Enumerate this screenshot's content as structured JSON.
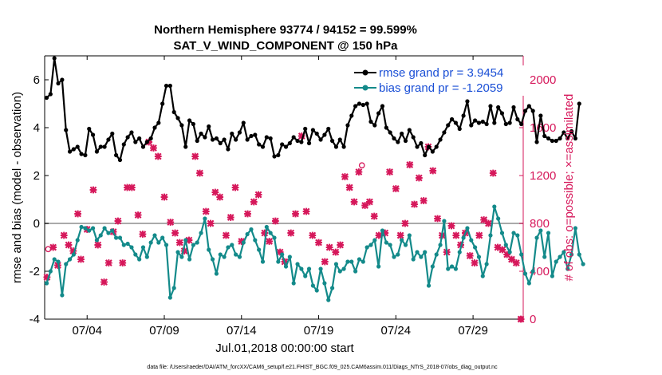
{
  "chart_data": {
    "type": "line",
    "title": "Northern Hemisphere 93774 / 94152 = 99.599%",
    "subtitle": "SAT_V_WIND_COMPONENT @ 150 hPa",
    "xlabel": "Jul.01,2018 00:00:00 start",
    "ylabel_left": "rmse and bias (model - observation)",
    "ylabel_right": "# of obs: o=possible; ×=assimilated",
    "footer": "data file: /Users/raeder/DAI/ATM_forcXX/CAM6_setup/f.e21.FHIST_BGC.f09_025.CAM6assim.011/Diags_NTrS_2018-07/obs_diag_output.nc",
    "x_range_days": [
      0.75,
      31.75
    ],
    "ylim_left": [
      -4,
      7
    ],
    "ylim_right": [
      0,
      2200
    ],
    "x_ticks": [
      {
        "day": 3.5,
        "label": "07/04"
      },
      {
        "day": 8.5,
        "label": "07/09"
      },
      {
        "day": 13.5,
        "label": "07/14"
      },
      {
        "day": 18.5,
        "label": "07/19"
      },
      {
        "day": 23.5,
        "label": "07/24"
      },
      {
        "day": 28.5,
        "label": "07/29"
      }
    ],
    "y_ticks_left": [
      -4,
      -2,
      0,
      2,
      4,
      6
    ],
    "y_ticks_right": [
      0,
      400,
      800,
      1200,
      1600,
      2000
    ],
    "zero_line": 0,
    "legend": [
      {
        "name": "rmse grand pr = 3.9454",
        "color": "#000000"
      },
      {
        "name": "bias grand pr = -1.2059",
        "color": "#138a8a"
      }
    ],
    "start_day": 0.88,
    "step_days": 0.25,
    "series": [
      {
        "name": "rmse",
        "color": "#000000",
        "axis": "left",
        "values": [
          5.25,
          5.4,
          6.9,
          5.85,
          6.0,
          3.9,
          3.0,
          3.1,
          3.2,
          2.9,
          2.85,
          3.95,
          3.7,
          3.0,
          3.2,
          3.2,
          3.5,
          3.75,
          2.85,
          2.65,
          3.3,
          3.6,
          3.8,
          3.4,
          3.55,
          3.2,
          3.4,
          3.55,
          4.0,
          4.2,
          5.0,
          5.75,
          5.75,
          4.65,
          4.4,
          4.1,
          3.2,
          4.3,
          4.15,
          3.45,
          3.75,
          3.6,
          4.05,
          3.5,
          3.55,
          3.35,
          3.5,
          3.1,
          3.75,
          3.5,
          3.8,
          4.2,
          3.5,
          3.65,
          3.7,
          3.3,
          3.2,
          3.6,
          3.55,
          2.8,
          2.85,
          3.3,
          3.2,
          3.35,
          3.6,
          3.45,
          3.4,
          3.95,
          3.35,
          3.9,
          3.75,
          3.5,
          3.7,
          3.95,
          3.45,
          3.2,
          3.5,
          3.2,
          4.1,
          4.5,
          4.9,
          5.0,
          4.95,
          5.0,
          4.25,
          4.1,
          4.6,
          4.9,
          4.0,
          3.8,
          3.55,
          3.4,
          3.75,
          3.45,
          3.9,
          3.6,
          3.2,
          3.35,
          2.85,
          3.2,
          3.0,
          3.2,
          3.5,
          3.8,
          4.1,
          4.35,
          4.2,
          3.95,
          4.5,
          5.1,
          4.1,
          4.3,
          4.2,
          4.25,
          4.15,
          4.9,
          4.2,
          4.85,
          4.6,
          4.15,
          4.2,
          4.85,
          4.35,
          4.15,
          4.7,
          4.9,
          4.7,
          3.4,
          4.5,
          3.65,
          3.55,
          3.45,
          3.45,
          3.55,
          3.8,
          3.55,
          3.85,
          3.55,
          5.0
        ]
      },
      {
        "name": "bias",
        "color": "#138a8a",
        "axis": "left",
        "values": [
          -2.5,
          -2.0,
          -1.5,
          -1.6,
          -3.0,
          -1.7,
          -1.5,
          -1.3,
          -0.7,
          -0.15,
          -0.2,
          -0.3,
          -0.2,
          -0.7,
          -0.5,
          -0.2,
          -0.4,
          -0.3,
          -0.6,
          -0.6,
          -0.9,
          -0.85,
          -1.0,
          -1.3,
          -1.5,
          -1.0,
          -1.4,
          -0.8,
          -0.5,
          -0.8,
          -0.6,
          -0.9,
          -3.1,
          -2.7,
          -1.2,
          -1.4,
          -0.7,
          -1.5,
          -0.9,
          -0.8,
          -0.4,
          0.2,
          -1.1,
          -1.5,
          -2.1,
          -1.3,
          -1.4,
          -1.0,
          -0.9,
          -1.3,
          -1.4,
          -0.8,
          -0.45,
          -0.25,
          -0.7,
          -1.1,
          -1.6,
          -0.15,
          -0.4,
          -0.6,
          -1.6,
          -1.3,
          -1.8,
          -1.4,
          -2.5,
          -1.7,
          -1.9,
          -2.2,
          -1.9,
          -2.6,
          -2.8,
          -1.9,
          -2.5,
          -3.2,
          -2.7,
          -1.7,
          -2.0,
          -1.9,
          -1.6,
          -1.6,
          -2.0,
          -1.5,
          -1.6,
          -1.0,
          -0.9,
          -0.7,
          -1.8,
          -0.3,
          -0.8,
          -0.9,
          -1.4,
          -1.3,
          -0.7,
          -0.9,
          -0.5,
          -1.5,
          -1.2,
          -1.4,
          -1.2,
          -2.6,
          -1.8,
          -1.3,
          -0.9,
          0.1,
          -1.9,
          -1.8,
          -1.9,
          -1.2,
          -0.6,
          -0.2,
          -0.7,
          -1.0,
          -1.4,
          -2.2,
          -1.7,
          -0.5,
          0.7,
          0.2,
          -0.4,
          -0.9,
          -1.2,
          -0.4,
          -0.5,
          -1.3,
          -2.1,
          -2.5,
          -2.0,
          -0.6,
          -0.3,
          -1.4,
          -0.4,
          -2.2,
          -1.6,
          -1.4,
          -1.2,
          -1.9,
          -1.3,
          -0.2,
          -1.3,
          -1.7
        ]
      }
    ],
    "obs_assimilated": {
      "axis": "right",
      "color": "#d6185b",
      "marker": "x",
      "points": [
        [
          0.9,
          350
        ],
        [
          1.3,
          600
        ],
        [
          1.6,
          450
        ],
        [
          2.0,
          700
        ],
        [
          2.3,
          620
        ],
        [
          2.6,
          570
        ],
        [
          2.9,
          880
        ],
        [
          3.1,
          500
        ],
        [
          3.5,
          750
        ],
        [
          3.9,
          1080
        ],
        [
          4.2,
          620
        ],
        [
          4.6,
          310
        ],
        [
          4.9,
          470
        ],
        [
          5.2,
          730
        ],
        [
          5.5,
          820
        ],
        [
          5.8,
          470
        ],
        [
          6.1,
          1100
        ],
        [
          6.4,
          1100
        ],
        [
          6.8,
          870
        ],
        [
          7.1,
          710
        ],
        [
          7.5,
          1480
        ],
        [
          7.8,
          1430
        ],
        [
          8.1,
          1360
        ],
        [
          8.5,
          1020
        ],
        [
          8.9,
          810
        ],
        [
          9.2,
          720
        ],
        [
          9.5,
          640
        ],
        [
          9.8,
          570
        ],
        [
          10.1,
          660
        ],
        [
          10.5,
          1360
        ],
        [
          10.8,
          1220
        ],
        [
          11.2,
          900
        ],
        [
          11.5,
          800
        ],
        [
          11.8,
          1060
        ],
        [
          12.1,
          1020
        ],
        [
          12.5,
          700
        ],
        [
          12.8,
          850
        ],
        [
          13.1,
          1100
        ],
        [
          13.5,
          650
        ],
        [
          13.9,
          880
        ],
        [
          14.3,
          980
        ],
        [
          14.6,
          1040
        ],
        [
          15.0,
          720
        ],
        [
          15.3,
          650
        ],
        [
          15.7,
          820
        ],
        [
          16.0,
          560
        ],
        [
          16.3,
          480
        ],
        [
          16.7,
          720
        ],
        [
          17.0,
          880
        ],
        [
          17.4,
          1530
        ],
        [
          17.7,
          900
        ],
        [
          18.1,
          700
        ],
        [
          18.5,
          640
        ],
        [
          18.9,
          480
        ],
        [
          19.2,
          600
        ],
        [
          19.6,
          560
        ],
        [
          19.9,
          620
        ],
        [
          20.2,
          1190
        ],
        [
          20.5,
          1100
        ],
        [
          20.8,
          980
        ],
        [
          21.1,
          1230
        ],
        [
          21.5,
          950
        ],
        [
          21.8,
          980
        ],
        [
          22.1,
          860
        ],
        [
          22.4,
          700
        ],
        [
          22.8,
          720
        ],
        [
          23.1,
          1230
        ],
        [
          23.5,
          1090
        ],
        [
          23.8,
          700
        ],
        [
          24.1,
          800
        ],
        [
          24.4,
          1290
        ],
        [
          24.7,
          960
        ],
        [
          25.0,
          1180
        ],
        [
          25.3,
          990
        ],
        [
          25.6,
          1440
        ],
        [
          25.9,
          1240
        ],
        [
          26.2,
          840
        ],
        [
          26.5,
          700
        ],
        [
          26.8,
          560
        ],
        [
          27.1,
          780
        ],
        [
          27.4,
          700
        ],
        [
          27.7,
          620
        ],
        [
          28.0,
          720
        ],
        [
          28.3,
          530
        ],
        [
          28.6,
          470
        ],
        [
          28.9,
          700
        ],
        [
          29.2,
          830
        ],
        [
          29.5,
          800
        ],
        [
          29.8,
          1220
        ],
        [
          30.1,
          600
        ],
        [
          30.4,
          580
        ],
        [
          30.7,
          540
        ],
        [
          31.0,
          500
        ],
        [
          31.3,
          470
        ],
        [
          31.6,
          0
        ]
      ]
    },
    "obs_possible": {
      "axis": "right",
      "color": "#d6185b",
      "marker": "o",
      "points": [
        [
          0.98,
          585
        ],
        [
          21.3,
          1285
        ],
        [
          31.6,
          0
        ]
      ]
    }
  }
}
